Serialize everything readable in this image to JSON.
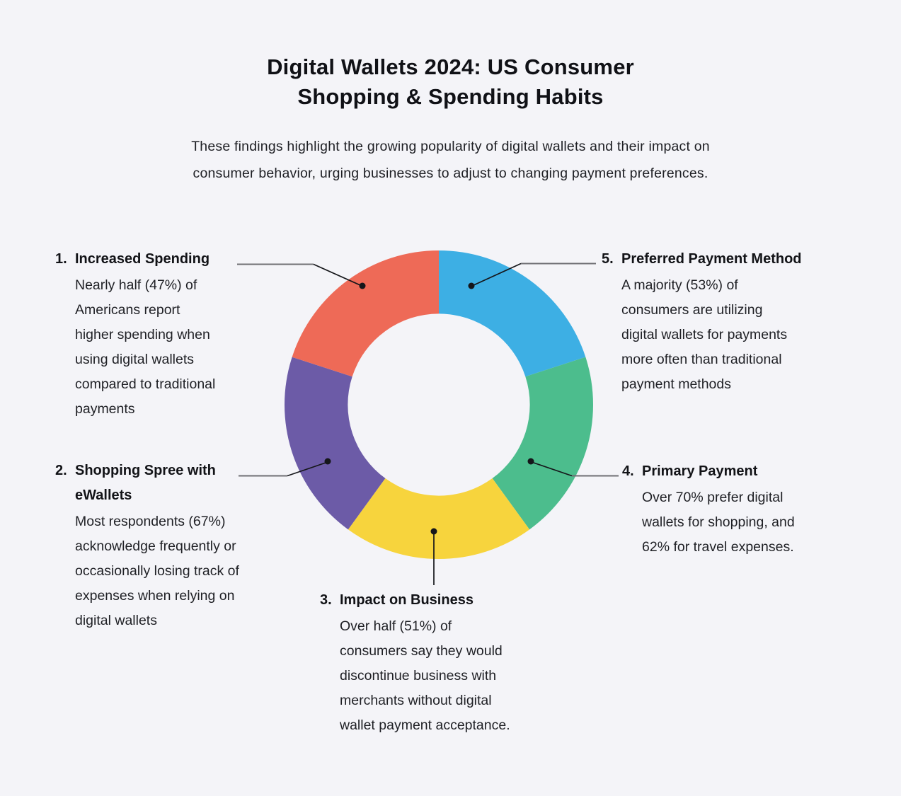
{
  "page": {
    "background": "#F4F4F8",
    "title_lines": [
      "Digital Wallets 2024: US Consumer",
      "Shopping & Spending Habits"
    ],
    "subtitle_lines": [
      "These findings highlight the growing popularity of digital wallets and their impact on",
      "consumer behavior, urging businesses to adjust to changing payment preferences."
    ]
  },
  "chart_data": {
    "type": "pie",
    "variant": "donut",
    "title": "Digital Wallets 2024: US Consumer Shopping & Spending Habits",
    "start_angle_deg": 0,
    "direction": "clockwise",
    "donut_hole_ratio": 0.59,
    "equal_segments": true,
    "legend_position": "callouts",
    "segments": [
      {
        "label": "Preferred Payment Method",
        "value": 20,
        "color": "#3DAFE4",
        "callout_stat": "53%"
      },
      {
        "label": "Primary Payment",
        "value": 20,
        "color": "#4CBD8D",
        "callout_stat": "70%"
      },
      {
        "label": "Impact on Business",
        "value": 20,
        "color": "#F7D43D",
        "callout_stat": "51%"
      },
      {
        "label": "Shopping Spree with eWallets",
        "value": 20,
        "color": "#6C5BA7",
        "callout_stat": "67%"
      },
      {
        "label": "Increased Spending",
        "value": 20,
        "color": "#EE6A57",
        "callout_stat": "47%"
      }
    ]
  },
  "stats": [
    {
      "number": "1.",
      "heading_lines": [
        "Increased Spending"
      ],
      "body_lines": [
        "Nearly half (47%) of",
        "Americans report",
        "higher spending when",
        "using digital wallets",
        "compared to traditional",
        "payments"
      ]
    },
    {
      "number": "2.",
      "heading_lines": [
        "Shopping Spree with",
        "eWallets"
      ],
      "body_lines": [
        "Most respondents (67%)",
        "acknowledge frequently or",
        "occasionally losing track of",
        "expenses when relying on",
        "digital wallets"
      ]
    },
    {
      "number": "3.",
      "heading_lines": [
        "Impact on Business"
      ],
      "body_lines": [
        "Over half (51%) of",
        "consumers say they would",
        "discontinue business with",
        "merchants without digital",
        "wallet payment acceptance."
      ]
    },
    {
      "number": "4.",
      "heading_lines": [
        "Primary Payment"
      ],
      "body_lines": [
        "Over 70% prefer digital",
        "wallets for shopping, and",
        "62% for travel expenses."
      ]
    },
    {
      "number": "5.",
      "heading_lines": [
        "Preferred Payment Method"
      ],
      "body_lines": [
        "A majority (53%) of",
        "consumers are utilizing",
        "digital wallets for payments",
        "more often than traditional",
        "payment methods"
      ]
    }
  ]
}
